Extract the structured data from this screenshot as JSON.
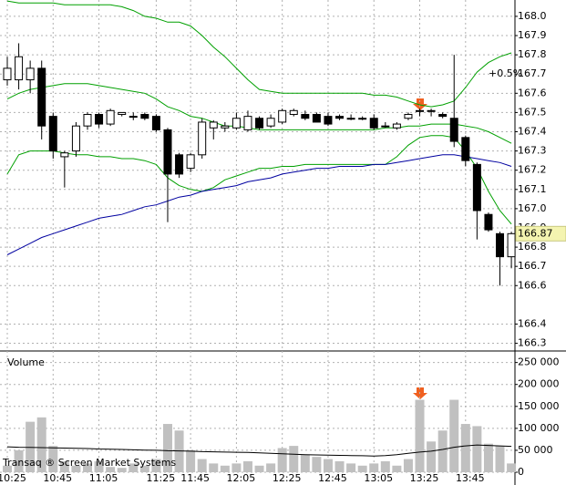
{
  "chart_data": [
    {
      "type": "candlestick",
      "open": [
        167.67,
        167.67,
        167.67,
        167.73,
        167.48,
        167.27,
        167.3,
        167.43,
        167.49,
        167.44,
        167.49,
        167.48,
        167.49,
        167.48,
        167.41,
        167.28,
        167.21,
        167.28,
        167.42,
        167.42,
        167.42,
        167.41,
        167.47,
        167.43,
        167.45,
        167.49,
        167.49,
        167.49,
        167.48,
        167.48,
        167.47,
        167.47,
        167.47,
        167.43,
        167.42,
        167.47,
        167.51,
        167.51,
        167.49,
        167.47,
        167.37,
        167.23,
        166.97,
        166.87,
        166.75
      ],
      "high": [
        167.79,
        167.86,
        167.77,
        167.77,
        167.5,
        167.3,
        167.45,
        167.5,
        167.5,
        167.52,
        167.5,
        167.5,
        167.5,
        167.49,
        167.42,
        167.29,
        167.29,
        167.47,
        167.46,
        167.45,
        167.5,
        167.51,
        167.48,
        167.49,
        167.52,
        167.52,
        167.51,
        167.5,
        167.5,
        167.49,
        167.49,
        167.48,
        167.49,
        167.45,
        167.45,
        167.5,
        167.52,
        167.52,
        167.5,
        167.8,
        167.38,
        167.24,
        166.98,
        166.88,
        166.88
      ],
      "low": [
        167.64,
        167.62,
        167.6,
        167.36,
        167.26,
        167.11,
        167.27,
        167.41,
        167.42,
        167.43,
        167.48,
        167.46,
        167.46,
        167.4,
        166.93,
        167.16,
        167.19,
        167.26,
        167.36,
        167.4,
        167.41,
        167.4,
        167.41,
        167.42,
        167.44,
        167.48,
        167.46,
        167.45,
        167.43,
        167.46,
        167.46,
        167.46,
        167.41,
        167.42,
        167.41,
        167.46,
        167.48,
        167.48,
        167.47,
        167.32,
        167.22,
        166.84,
        166.88,
        166.6,
        166.69
      ],
      "close": [
        167.73,
        167.79,
        167.73,
        167.43,
        167.3,
        167.29,
        167.43,
        167.49,
        167.44,
        167.51,
        167.5,
        167.48,
        167.47,
        167.41,
        167.18,
        167.18,
        167.28,
        167.45,
        167.45,
        167.43,
        167.47,
        167.48,
        167.42,
        167.47,
        167.51,
        167.51,
        167.47,
        167.45,
        167.44,
        167.47,
        167.47,
        167.47,
        167.42,
        167.43,
        167.44,
        167.49,
        167.51,
        167.51,
        167.48,
        167.35,
        167.25,
        166.99,
        166.89,
        166.75,
        166.87
      ],
      "series": [
        {
          "color": "#00a000",
          "values": [
            168.08,
            168.07,
            168.07,
            168.07,
            168.07,
            168.06,
            168.06,
            168.06,
            168.06,
            168.06,
            168.05,
            168.03,
            168.0,
            167.99,
            167.97,
            167.97,
            167.95,
            167.9,
            167.84,
            167.79,
            167.73,
            167.67,
            167.62,
            167.61,
            167.6,
            167.6,
            167.6,
            167.6,
            167.6,
            167.6,
            167.6,
            167.6,
            167.59,
            167.59,
            167.58,
            167.56,
            167.54,
            167.53,
            167.54,
            167.56,
            167.63,
            167.71,
            167.76,
            167.79,
            167.81
          ]
        },
        {
          "color": "#00a000",
          "values": [
            167.57,
            167.6,
            167.62,
            167.63,
            167.64,
            167.65,
            167.65,
            167.65,
            167.64,
            167.63,
            167.62,
            167.61,
            167.6,
            167.57,
            167.53,
            167.51,
            167.48,
            167.47,
            167.45,
            167.43,
            167.43,
            167.42,
            167.41,
            167.41,
            167.41,
            167.41,
            167.41,
            167.41,
            167.41,
            167.41,
            167.41,
            167.41,
            167.41,
            167.42,
            167.42,
            167.43,
            167.43,
            167.44,
            167.44,
            167.44,
            167.43,
            167.42,
            167.4,
            167.37,
            167.34
          ]
        },
        {
          "color": "#00a000",
          "values": [
            167.18,
            167.28,
            167.3,
            167.3,
            167.3,
            167.29,
            167.28,
            167.28,
            167.27,
            167.27,
            167.26,
            167.26,
            167.25,
            167.23,
            167.16,
            167.12,
            167.1,
            167.09,
            167.11,
            167.15,
            167.17,
            167.19,
            167.21,
            167.21,
            167.22,
            167.22,
            167.23,
            167.23,
            167.23,
            167.23,
            167.23,
            167.23,
            167.23,
            167.23,
            167.27,
            167.33,
            167.37,
            167.38,
            167.38,
            167.37,
            167.3,
            167.21,
            167.09,
            166.99,
            166.92
          ]
        },
        {
          "color": "#0000a0",
          "values": [
            166.76,
            166.79,
            166.82,
            166.85,
            166.87,
            166.89,
            166.91,
            166.93,
            166.95,
            166.96,
            166.97,
            166.99,
            167.01,
            167.02,
            167.04,
            167.06,
            167.07,
            167.09,
            167.1,
            167.11,
            167.12,
            167.14,
            167.15,
            167.16,
            167.18,
            167.19,
            167.2,
            167.21,
            167.21,
            167.22,
            167.22,
            167.22,
            167.23,
            167.23,
            167.24,
            167.25,
            167.26,
            167.27,
            167.28,
            167.28,
            167.27,
            167.26,
            167.25,
            167.24,
            167.22
          ]
        }
      ],
      "ylim": [
        166.26,
        168.085
      ],
      "yticks": [
        {
          "value": 168,
          "label": "168.0"
        },
        167.9,
        167.8,
        167.7,
        167.6,
        167.5,
        167.4,
        167.3,
        167.2,
        167.1,
        {
          "value": 167,
          "label": "167.0"
        },
        166.9,
        166.8,
        166.7,
        166.6,
        166.4,
        166.3
      ],
      "last_price": 166.87,
      "annotation": "+0.5%",
      "grid": true
    },
    {
      "type": "bar",
      "title": "Volume",
      "annotation": "Transaq ® Screen Market Systems",
      "categories": [
        "10:25",
        null,
        null,
        null,
        "10:45",
        null,
        null,
        null,
        "11:05",
        null,
        null,
        null,
        null,
        "11:25",
        null,
        null,
        "11:45",
        null,
        null,
        null,
        "12:05",
        null,
        null,
        null,
        "12:25",
        null,
        null,
        null,
        "12:45",
        null,
        null,
        null,
        "13:05",
        null,
        null,
        null,
        "13:25",
        null,
        null,
        null,
        "13:45",
        null,
        null,
        null,
        null
      ],
      "values": [
        15000,
        50000,
        115000,
        125000,
        60000,
        25000,
        15000,
        20000,
        25000,
        12000,
        10000,
        20000,
        15000,
        30000,
        110000,
        95000,
        50000,
        30000,
        20000,
        15000,
        20000,
        25000,
        15000,
        20000,
        55000,
        60000,
        40000,
        35000,
        30000,
        25000,
        20000,
        15000,
        20000,
        25000,
        15000,
        30000,
        165000,
        70000,
        95000,
        165000,
        110000,
        105000,
        65000,
        60000,
        20000
      ],
      "color": "#c0c0c0",
      "series": [
        {
          "color": "#000000",
          "values": [
            58000,
            57000,
            56500,
            56000,
            55500,
            55000,
            54500,
            54000,
            53000,
            52500,
            52000,
            51000,
            50500,
            50000,
            49000,
            48500,
            48000,
            47000,
            46500,
            46000,
            45500,
            45000,
            44000,
            43000,
            42000,
            41000,
            40000,
            39500,
            39000,
            38500,
            38000,
            37500,
            37000,
            38000,
            40000,
            43000,
            46000,
            48000,
            52000,
            57000,
            60000,
            62000,
            61000,
            60000,
            59000
          ]
        }
      ],
      "ylim": [
        0,
        270000
      ],
      "yticks": [
        {
          "value": 250000,
          "label": "250 000"
        },
        {
          "value": 200000,
          "label": "200 000"
        },
        {
          "value": 150000,
          "label": "150 000"
        },
        {
          "value": 100000,
          "label": "100 000"
        },
        {
          "value": 50000,
          "label": "50 000"
        },
        0
      ],
      "grid": true
    }
  ]
}
